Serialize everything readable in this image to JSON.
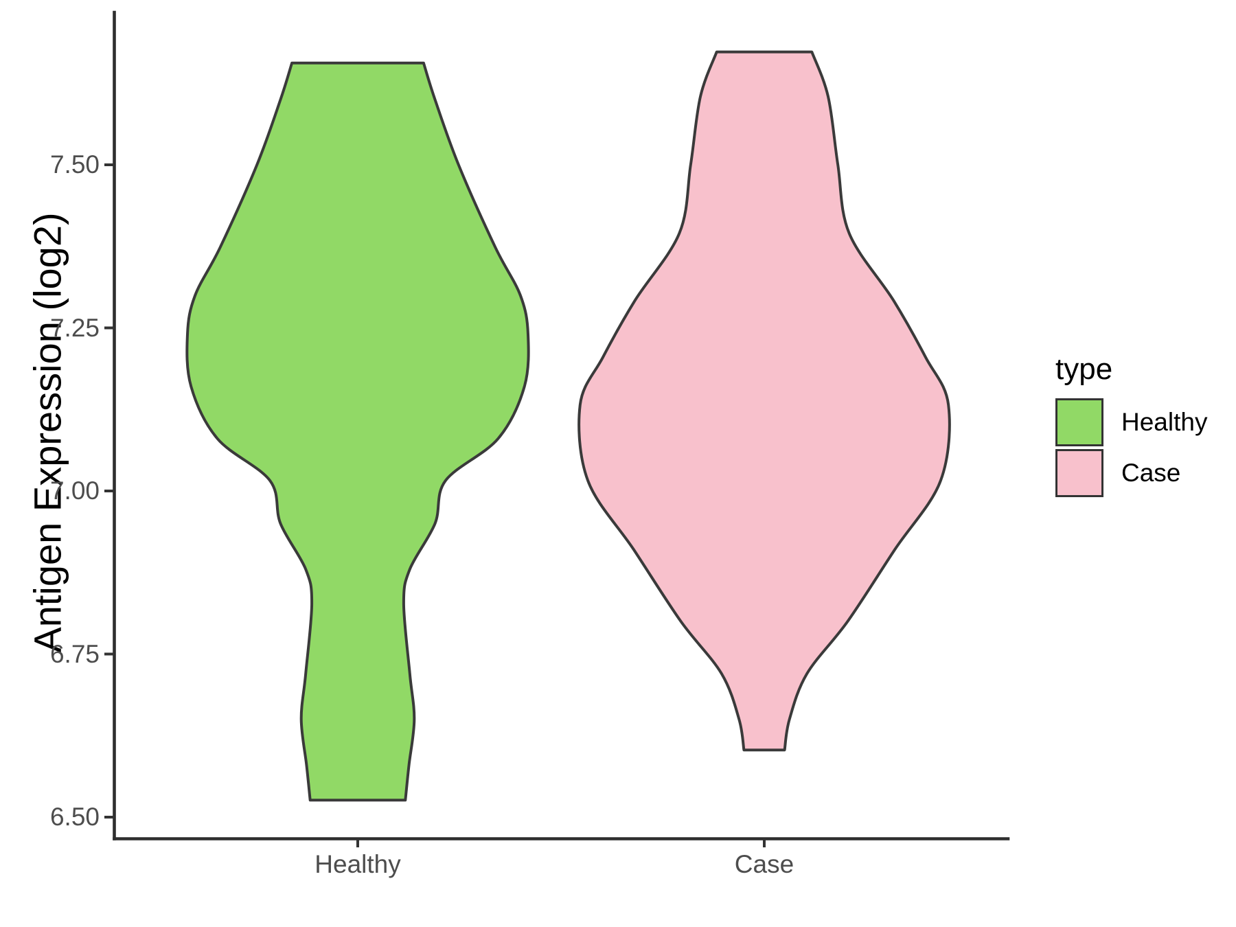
{
  "chart_data": {
    "type": "violin",
    "title": "",
    "xlabel": "",
    "ylabel": "Antigen Expression (log2)",
    "categories": [
      "Healthy",
      "Case"
    ],
    "y_axis": {
      "label": "Antigen Expression (log2)",
      "ticks": [
        {
          "label": "7.50",
          "value": 7.5
        },
        {
          "label": "7.25",
          "value": 7.25
        },
        {
          "label": "7.00",
          "value": 7.0
        },
        {
          "label": "6.75",
          "value": 6.75
        },
        {
          "label": "6.50",
          "value": 6.5
        }
      ],
      "ylim": [
        6.47,
        7.73
      ]
    },
    "grid": "off",
    "legend": {
      "title": "type",
      "position": "right",
      "items": [
        {
          "label": "Healthy",
          "color": "#91D966",
          "border": "#333333"
        },
        {
          "label": "Case",
          "color": "#F8C1CC",
          "border": "#333333"
        }
      ]
    },
    "series": [
      {
        "name": "Healthy",
        "fill": "#91D966",
        "outline": "#3A3A3A",
        "y_range": [
          6.53,
          7.66
        ],
        "peak_density_at": 7.24,
        "profile": [
          [
            7.656,
            0.162
          ],
          [
            7.6,
            0.19
          ],
          [
            7.5,
            0.248
          ],
          [
            7.374,
            0.338
          ],
          [
            7.3,
            0.4
          ],
          [
            7.24,
            0.419
          ],
          [
            7.16,
            0.41
          ],
          [
            7.08,
            0.345
          ],
          [
            7.016,
            0.216
          ],
          [
            6.95,
            0.19
          ],
          [
            6.88,
            0.128
          ],
          [
            6.828,
            0.113
          ],
          [
            6.72,
            0.128
          ],
          [
            6.65,
            0.139
          ],
          [
            6.58,
            0.126
          ],
          [
            6.526,
            0.117
          ]
        ]
      },
      {
        "name": "Case",
        "fill": "#F8C1CC",
        "outline": "#3A3A3A",
        "y_range": [
          6.6,
          7.67
        ],
        "peak_density_at": 7.13,
        "profile": [
          [
            7.673,
            0.117
          ],
          [
            7.605,
            0.157
          ],
          [
            7.5,
            0.181
          ],
          [
            7.395,
            0.209
          ],
          [
            7.292,
            0.318
          ],
          [
            7.205,
            0.397
          ],
          [
            7.132,
            0.453
          ],
          [
            7.016,
            0.434
          ],
          [
            6.91,
            0.321
          ],
          [
            6.8,
            0.205
          ],
          [
            6.72,
            0.105
          ],
          [
            6.65,
            0.062
          ],
          [
            6.603,
            0.05
          ]
        ]
      }
    ],
    "colors": {
      "axis_line": "#2E2E2E",
      "tick_mark": "#333333",
      "tick_text": "#4D4D4D",
      "violin_outline": "#3A3A3A",
      "background": "#FFFFFF"
    }
  }
}
